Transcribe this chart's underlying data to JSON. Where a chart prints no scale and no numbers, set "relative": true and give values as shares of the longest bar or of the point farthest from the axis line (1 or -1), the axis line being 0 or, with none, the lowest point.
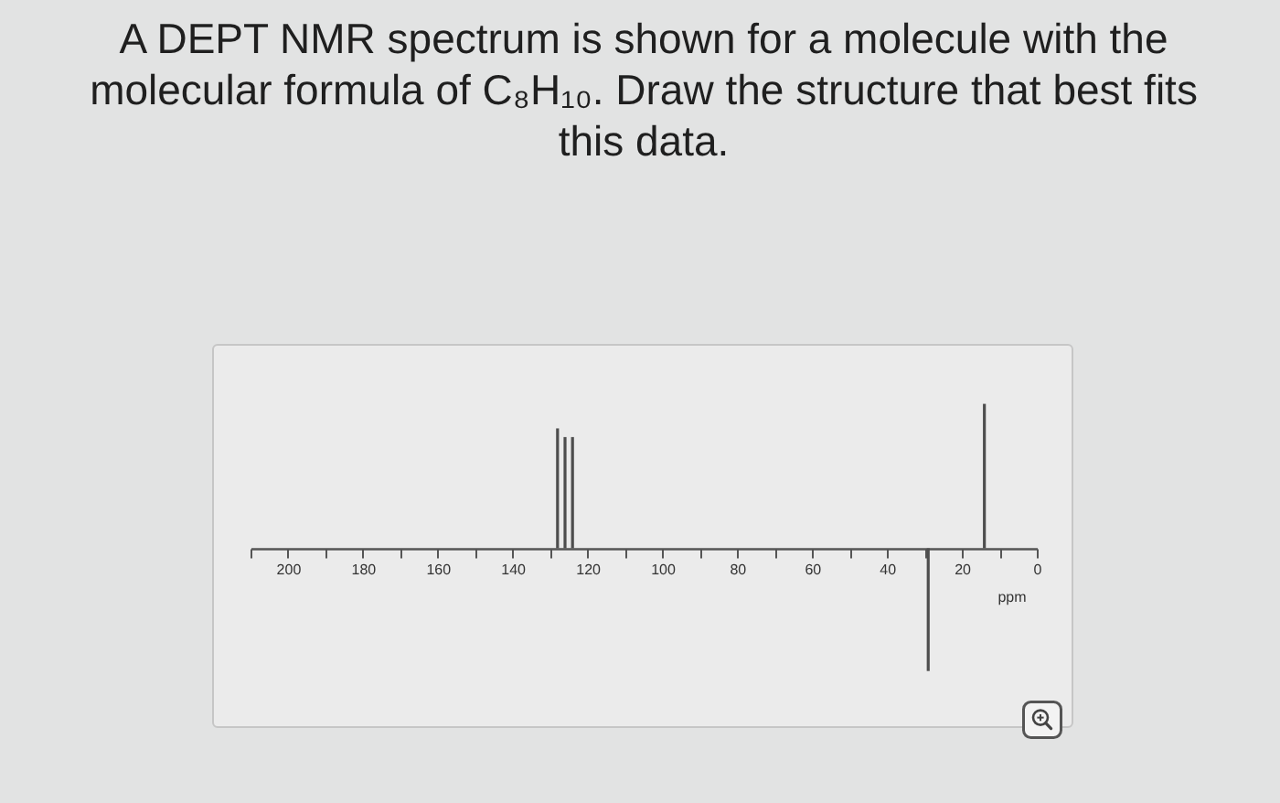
{
  "chart_data": {
    "type": "bar",
    "title": "A DEPT NMR spectrum is shown for a molecule with the molecular formula of C₈H₁₀. Draw the structure that best fits this data.",
    "xlabel": "ppm",
    "x": [
      128,
      126,
      124,
      29,
      14
    ],
    "values": [
      0.83,
      0.77,
      0.77,
      -0.85,
      1
    ],
    "color": "#4d4d4d",
    "relative": true,
    "xlim": [
      210,
      0
    ],
    "xticks": [
      {
        "value": 210,
        "label": null
      },
      200,
      {
        "value": 190,
        "label": null
      },
      180,
      {
        "value": 170,
        "label": null
      },
      160,
      {
        "value": 150,
        "label": null
      },
      140,
      {
        "value": 130,
        "label": null
      },
      120,
      {
        "value": 110,
        "label": null
      },
      100,
      {
        "value": 90,
        "label": null
      },
      80,
      {
        "value": 70,
        "label": null
      },
      60,
      {
        "value": 50,
        "label": null
      },
      40,
      {
        "value": 30,
        "label": null
      },
      20,
      {
        "value": 10,
        "label": null
      },
      0
    ]
  }
}
